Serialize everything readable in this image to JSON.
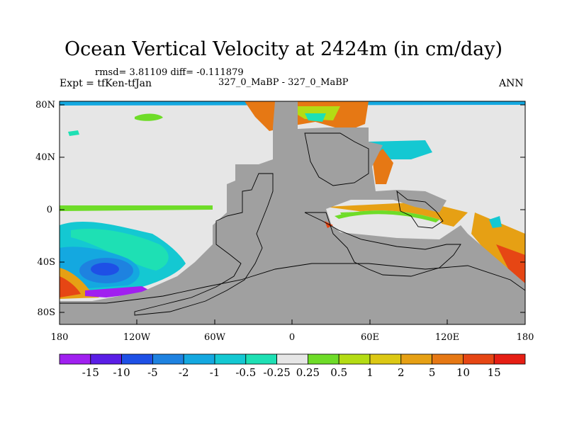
{
  "title": "Ocean Vertical Velocity at 2424m (in cm/day)",
  "stats": "rmsd= 3.81109 diff= -0.111879",
  "experiment": "Expt = tfKen-tfJan",
  "case": "327_0_MaBP - 327_0_MaBP",
  "season": "ANN",
  "lat_ticks": [
    "80N",
    "40N",
    "0",
    "40S",
    "80S"
  ],
  "lon_ticks": [
    "180",
    "120W",
    "60W",
    "0",
    "60E",
    "120E",
    "180"
  ],
  "colorbar": {
    "labels": [
      "-15",
      "-10",
      "-5",
      "-2",
      "-1",
      "-0.5",
      "-0.25",
      "0.25",
      "0.5",
      "1",
      "2",
      "5",
      "10",
      "15"
    ],
    "colors": [
      "#a020f0",
      "#5a1ee6",
      "#1e50e6",
      "#1e82e0",
      "#14a8e0",
      "#14c8d2",
      "#1ee0b4",
      "#e6e6e6",
      "#6edc28",
      "#b4dc14",
      "#dcc814",
      "#e6a014",
      "#e67814",
      "#e64614",
      "#e61e14"
    ]
  },
  "land_color": "#a0a0a0",
  "background_color": "#e6e6e6"
}
